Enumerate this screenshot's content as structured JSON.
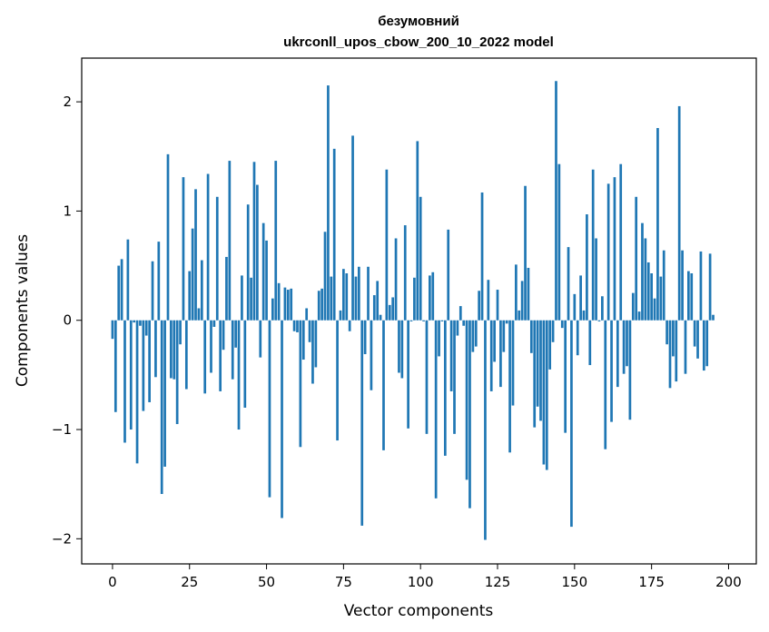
{
  "chart_data": {
    "type": "bar",
    "title_line1": "безумовний",
    "title_line2": "ukrconll_upos_cbow_200_10_2022 model",
    "xlabel": "Vector components",
    "ylabel": "Components values",
    "xlim": [
      -10,
      209
    ],
    "ylim": [
      -2.23,
      2.4
    ],
    "xticks": [
      0,
      25,
      50,
      75,
      100,
      125,
      150,
      175,
      200
    ],
    "yticks": [
      -2,
      -1,
      0,
      1,
      2
    ],
    "ytick_labels": [
      "−2",
      "−1",
      "0",
      "1",
      "2"
    ],
    "bar_color": "#1f77b4",
    "grid": false,
    "values": [
      -0.17,
      -0.84,
      0.5,
      0.56,
      -1.12,
      0.74,
      -1.0,
      -0.02,
      -1.31,
      -0.05,
      -0.83,
      -0.14,
      -0.75,
      0.54,
      -0.52,
      0.72,
      -1.59,
      -1.34,
      1.52,
      -0.53,
      -0.54,
      -0.95,
      -0.22,
      1.31,
      -0.63,
      0.45,
      0.84,
      1.2,
      0.11,
      0.55,
      -0.67,
      1.34,
      -0.48,
      -0.06,
      1.13,
      -0.65,
      -0.27,
      0.58,
      1.46,
      -0.54,
      -0.25,
      -1.0,
      0.41,
      -0.8,
      1.06,
      0.39,
      1.45,
      1.24,
      -0.34,
      0.89,
      0.73,
      -1.62,
      0.2,
      1.46,
      0.34,
      -1.81,
      0.3,
      0.28,
      0.29,
      -0.1,
      -0.11,
      -1.16,
      -0.36,
      0.11,
      -0.2,
      -0.58,
      -0.43,
      0.27,
      0.29,
      0.81,
      2.15,
      0.4,
      1.57,
      -1.1,
      0.09,
      0.47,
      0.43,
      -0.1,
      1.69,
      0.4,
      0.49,
      -1.88,
      -0.31,
      0.49,
      -0.64,
      0.23,
      0.36,
      0.05,
      -1.19,
      1.38,
      0.14,
      0.21,
      0.75,
      -0.48,
      -0.53,
      0.87,
      -0.99,
      -0.01,
      0.39,
      1.64,
      1.13,
      -0.01,
      -1.04,
      0.41,
      0.44,
      -1.63,
      -0.33,
      -0.01,
      -1.24,
      0.83,
      -0.65,
      -1.04,
      -0.14,
      0.13,
      -0.05,
      -1.46,
      -1.72,
      -0.29,
      -0.24,
      0.27,
      1.17,
      -2.01,
      0.37,
      -0.65,
      -0.38,
      0.28,
      -0.61,
      -0.29,
      -0.03,
      -1.21,
      -0.78,
      0.51,
      0.09,
      0.36,
      1.23,
      0.48,
      -0.3,
      -0.98,
      -0.79,
      -0.92,
      -1.32,
      -1.37,
      -0.45,
      -0.2,
      2.19,
      1.43,
      -0.07,
      -1.03,
      0.67,
      -1.89,
      0.24,
      -0.32,
      0.41,
      0.09,
      0.97,
      -0.41,
      1.38,
      0.75,
      -0.01,
      0.22,
      -1.18,
      1.25,
      -0.93,
      1.31,
      -0.61,
      1.43,
      -0.49,
      -0.42,
      -0.91,
      0.25,
      1.13,
      0.08,
      0.89,
      0.75,
      0.53,
      0.43,
      0.2,
      1.76,
      0.4,
      0.64,
      -0.22,
      -0.62,
      -0.33,
      -0.56,
      1.96,
      0.64,
      -0.49,
      0.45,
      0.43,
      -0.24,
      -0.35,
      0.63,
      -0.46,
      -0.42,
      0.61,
      0.05
    ]
  }
}
